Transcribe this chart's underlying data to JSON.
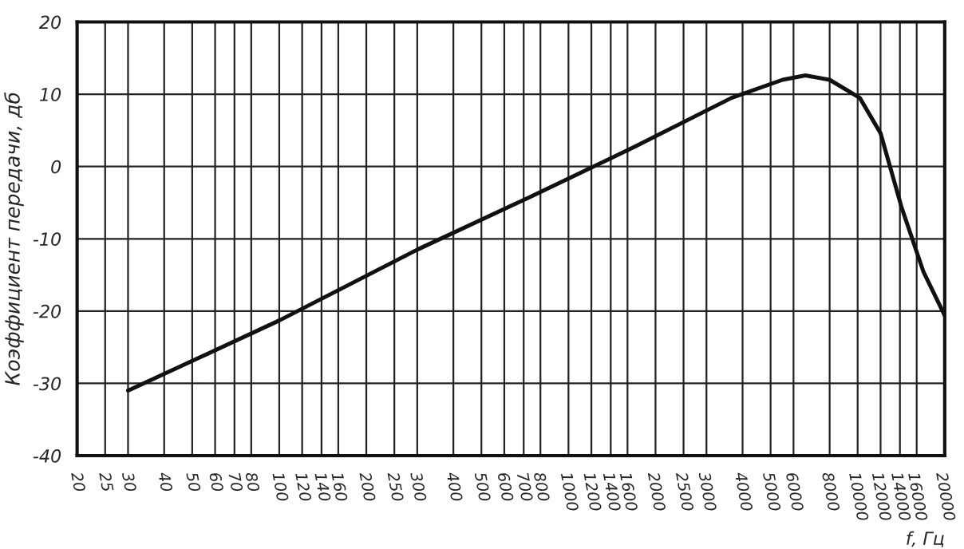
{
  "chart_data": {
    "type": "line",
    "xlabel": "f, Гц",
    "ylabel": "Коэффициент передачи, дб",
    "log": "x",
    "x": [
      30,
      100,
      300,
      728,
      1708,
      3666,
      5500,
      6600,
      8000,
      10170,
      12000,
      14200,
      16900,
      20000
    ],
    "series": [
      {
        "color": "#111111",
        "values": [
          -31,
          -21.3,
          -11.5,
          -4.3,
          2.8,
          9.5,
          12,
          12.6,
          12,
          9.5,
          4.6,
          -5.7,
          -14.6,
          -20.6
        ]
      }
    ],
    "xlim": [
      20,
      20000
    ],
    "ylim": [
      -40,
      20
    ],
    "xticks": [
      20,
      25,
      30,
      40,
      50,
      60,
      70,
      80,
      100,
      120,
      140,
      160,
      200,
      250,
      300,
      400,
      500,
      600,
      700,
      800,
      1000,
      1200,
      1400,
      1600,
      2000,
      2500,
      3000,
      4000,
      5000,
      6000,
      8000,
      10000,
      12000,
      14000,
      16000,
      20000
    ],
    "yticks": [
      -40,
      -30,
      -20,
      -10,
      0,
      10,
      20
    ],
    "grid": true,
    "marker": "none",
    "line_style": "solid",
    "legend": false
  }
}
